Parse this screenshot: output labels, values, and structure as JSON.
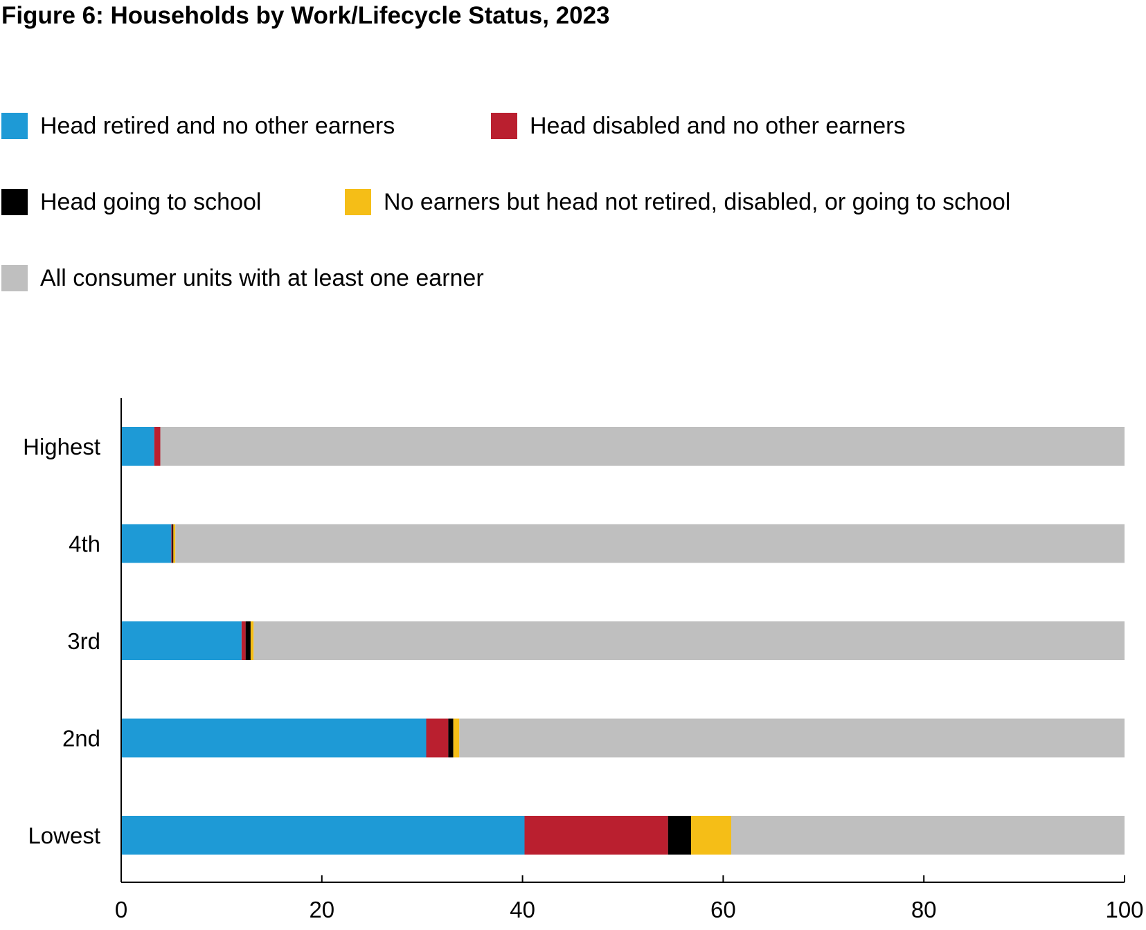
{
  "title": "Figure 6: Households by Work/Lifecycle Status, 2023",
  "chart_data": {
    "type": "bar",
    "orientation": "horizontal",
    "stacked": true,
    "title": "Figure 6: Households by Work/Lifecycle Status, 2023",
    "xlabel": "",
    "ylabel": "",
    "xlim": [
      0,
      100
    ],
    "x_ticks": [
      "0",
      "20",
      "40",
      "60",
      "80",
      "100"
    ],
    "grid": false,
    "legend_position": "top",
    "categories": [
      "Highest",
      "4th",
      "3rd",
      "2nd",
      "Lowest"
    ],
    "series": [
      {
        "name": "Head retired and no other earners",
        "color": "#1E9AD6",
        "values": [
          3.3,
          5.0,
          12.0,
          30.4,
          40.2
        ]
      },
      {
        "name": "Head disabled and no other earners",
        "color": "#BA1F2F",
        "values": [
          0.6,
          0.1,
          0.4,
          2.2,
          14.3
        ]
      },
      {
        "name": "Head going to school",
        "color": "#000000",
        "values": [
          0.0,
          0.1,
          0.5,
          0.5,
          2.3
        ]
      },
      {
        "name": "No earners but head not retired, disabled, or going to school",
        "color": "#F5BE17",
        "values": [
          0.0,
          0.2,
          0.3,
          0.6,
          4.0
        ]
      },
      {
        "name": "All consumer units with at least one earner",
        "color": "#BFBFBF",
        "values": [
          96.1,
          94.6,
          86.8,
          66.3,
          39.2
        ]
      }
    ]
  }
}
